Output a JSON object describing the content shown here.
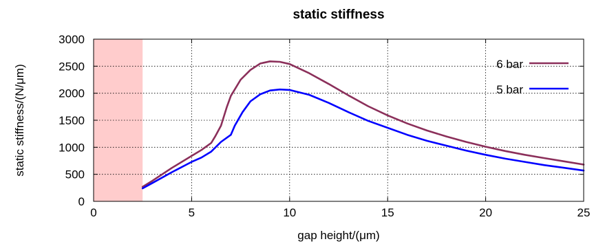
{
  "chart_data": {
    "type": "line",
    "title": "static stiffness",
    "xlabel": "gap height/(μm)",
    "ylabel": "static stiffness/(N/μm)",
    "xlim": [
      0,
      25
    ],
    "ylim": [
      0,
      3000
    ],
    "x_ticks": [
      "0",
      "5",
      "10",
      "15",
      "20",
      "25"
    ],
    "y_ticks": [
      "0",
      "500",
      "1000",
      "1500",
      "2000",
      "2500",
      "3000"
    ],
    "grid": true,
    "legend_position": "top-right",
    "shaded_region": {
      "x_from": 0,
      "x_to": 2.5,
      "color": "#ffcccc"
    },
    "series": [
      {
        "name": "6 bar",
        "color": "#8b2f5a",
        "x": [
          2.5,
          3,
          4,
          5,
          5.5,
          6,
          6.2,
          6.5,
          6.8,
          7,
          7.5,
          8,
          8.5,
          9,
          9.5,
          10,
          11,
          12,
          13,
          14,
          15,
          16,
          17,
          18,
          19,
          20,
          21,
          22,
          23,
          24,
          25
        ],
        "y": [
          270,
          380,
          620,
          840,
          950,
          1080,
          1200,
          1400,
          1750,
          1950,
          2250,
          2430,
          2550,
          2590,
          2580,
          2540,
          2370,
          2170,
          1960,
          1760,
          1590,
          1440,
          1310,
          1200,
          1100,
          1010,
          930,
          860,
          800,
          740,
          680
        ]
      },
      {
        "name": "5 bar",
        "color": "#0000ff",
        "x": [
          2.5,
          3,
          4,
          5,
          5.5,
          6,
          6.5,
          7,
          7.2,
          7.6,
          8,
          8.5,
          9,
          9.5,
          10,
          11,
          12,
          13,
          14,
          15,
          16,
          17,
          18,
          19,
          20,
          21,
          22,
          23,
          24,
          25
        ],
        "y": [
          240,
          340,
          540,
          730,
          810,
          920,
          1100,
          1230,
          1400,
          1650,
          1850,
          1980,
          2050,
          2070,
          2060,
          1970,
          1820,
          1650,
          1490,
          1360,
          1230,
          1120,
          1030,
          940,
          860,
          790,
          730,
          670,
          620,
          570
        ]
      }
    ]
  }
}
